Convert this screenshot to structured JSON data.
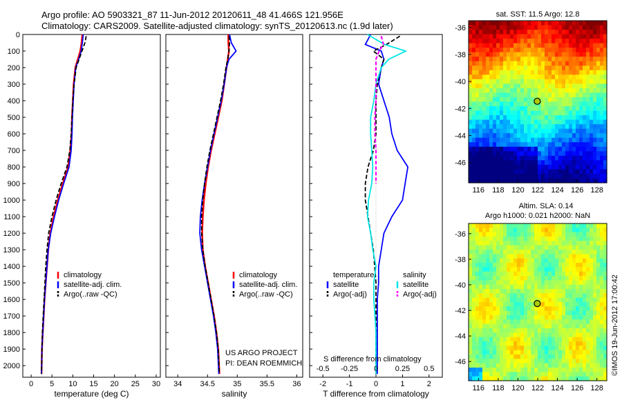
{
  "title": {
    "line1": "Argo profile: AO 5903321_87 11-Jun-2012 20120611_48 41.466S 121.956E",
    "line2": "Climatology: CARS2009. Satellite-adjusted climatology: synTS_20120613.nc (1.9d later)"
  },
  "colors": {
    "climatology": "#ff0000",
    "satellite": "#0000ff",
    "argo": "#000000",
    "s_satellite": "#00e5e5",
    "s_argo": "#ff00ff"
  },
  "chart_data": [
    {
      "type": "line",
      "panel": "temperature",
      "xlabel": "temperature (deg C)",
      "ylabel": "",
      "xlim": [
        -2,
        31
      ],
      "ylim": [
        2070,
        0
      ],
      "y_reversed": true,
      "xticks": [
        "0",
        "5",
        "10",
        "15",
        "20",
        "25",
        "30"
      ],
      "yticks": [
        "0",
        "100",
        "200",
        "300",
        "400",
        "500",
        "600",
        "700",
        "800",
        "900",
        "1000",
        "1100",
        "1200",
        "1300",
        "1400",
        "1500",
        "1600",
        "1700",
        "1800",
        "1900",
        "2000"
      ],
      "legend": [
        "climatology",
        "satellite-adj. clim.",
        "Argo(..raw -QC)"
      ],
      "series": [
        {
          "name": "climatology",
          "x": [
            12.3,
            12.1,
            11.8,
            11.2,
            10.6,
            10.2,
            10.0,
            9.8,
            9.7,
            9.4,
            8.9,
            7.6,
            6.4,
            5.4,
            4.6,
            4.1,
            3.8,
            3.5,
            3.2,
            3.0,
            2.8,
            2.6,
            2.5
          ],
          "y": [
            0,
            50,
            100,
            150,
            200,
            300,
            400,
            500,
            600,
            700,
            800,
            900,
            1000,
            1100,
            1200,
            1300,
            1400,
            1500,
            1600,
            1700,
            1800,
            1900,
            2050
          ]
        },
        {
          "name": "satellite-adj. clim.",
          "x": [
            12.5,
            12.3,
            12.0,
            11.4,
            10.7,
            10.3,
            10.1,
            9.9,
            9.8,
            9.6,
            9.1,
            7.8,
            6.6,
            5.6,
            4.7,
            4.1,
            3.8,
            3.5,
            3.2,
            3.0,
            2.8,
            2.6,
            2.5
          ],
          "y": [
            0,
            50,
            100,
            150,
            200,
            300,
            400,
            500,
            600,
            700,
            800,
            900,
            1000,
            1100,
            1200,
            1300,
            1400,
            1500,
            1600,
            1700,
            1800,
            1900,
            2050
          ]
        },
        {
          "name": "Argo(..raw -QC)",
          "x": [
            13.2,
            12.9,
            12.2,
            11.5,
            10.8,
            10.3,
            10.0,
            9.8,
            9.6,
            9.3,
            8.6,
            7.2,
            6.0,
            5.0,
            4.2,
            3.8,
            3.5,
            3.3,
            3.1,
            2.9,
            2.7,
            2.6,
            2.5
          ],
          "y": [
            10,
            50,
            100,
            150,
            200,
            300,
            400,
            500,
            600,
            700,
            800,
            900,
            1000,
            1100,
            1200,
            1300,
            1400,
            1500,
            1600,
            1700,
            1800,
            1900,
            2050
          ]
        }
      ]
    },
    {
      "type": "line",
      "panel": "salinity",
      "xlabel": "salinity",
      "xlim": [
        33.8,
        36.1
      ],
      "ylim": [
        2070,
        0
      ],
      "y_reversed": true,
      "xticks": [
        "34",
        "34.5",
        "35",
        "35.5",
        "36"
      ],
      "legend": [
        "climatology",
        "satellite-adj. clim.",
        "Argo(..raw -QC)"
      ],
      "annotation": [
        "US ARGO PROJECT",
        "PI: DEAN ROEMMICH"
      ],
      "series": [
        {
          "name": "climatology",
          "x": [
            34.85,
            34.85,
            34.86,
            34.84,
            34.82,
            34.78,
            34.74,
            34.68,
            34.62,
            34.56,
            34.51,
            34.47,
            34.44,
            34.42,
            34.41,
            34.42,
            34.46,
            34.51,
            34.56,
            34.61,
            34.65,
            34.68,
            34.7
          ],
          "y": [
            0,
            50,
            100,
            150,
            200,
            300,
            400,
            500,
            600,
            700,
            800,
            900,
            1000,
            1100,
            1200,
            1300,
            1400,
            1500,
            1600,
            1700,
            1800,
            1900,
            2050
          ]
        },
        {
          "name": "satellite-adj. clim.",
          "x": [
            34.87,
            34.9,
            34.98,
            34.86,
            34.82,
            34.78,
            34.73,
            34.67,
            34.61,
            34.55,
            34.5,
            34.45,
            34.41,
            34.38,
            34.37,
            34.4,
            34.45,
            34.5,
            34.55,
            34.6,
            34.64,
            34.67,
            34.69
          ],
          "y": [
            0,
            50,
            100,
            150,
            200,
            300,
            400,
            500,
            600,
            700,
            800,
            900,
            1000,
            1100,
            1200,
            1300,
            1400,
            1500,
            1600,
            1700,
            1800,
            1900,
            2050
          ]
        },
        {
          "name": "Argo(..raw -QC)",
          "x": [
            34.86,
            34.87,
            34.86,
            34.84,
            34.81,
            34.77,
            34.72,
            34.66,
            34.6,
            34.54,
            34.49,
            34.45,
            34.42,
            34.4,
            34.4,
            34.42,
            34.46,
            34.51,
            34.56,
            34.61,
            34.65,
            34.68,
            34.7
          ],
          "y": [
            10,
            50,
            100,
            150,
            200,
            300,
            400,
            500,
            600,
            700,
            800,
            900,
            1000,
            1100,
            1200,
            1300,
            1400,
            1500,
            1600,
            1700,
            1800,
            1900,
            2050
          ]
        }
      ]
    },
    {
      "type": "line",
      "panel": "difference",
      "xlabel": "T difference from climatology",
      "xlabel_top": "S difference from climatology",
      "xlim": [
        -2.5,
        2.5
      ],
      "ylim": [
        2070,
        0
      ],
      "y_reversed": true,
      "xticks": [
        "-2",
        "-1",
        "0",
        "1",
        "2"
      ],
      "xticks_top": [
        "-0.5",
        "-0.25",
        "0",
        "0.25",
        "0.5"
      ],
      "legend": {
        "temperature_header": "temperature",
        "salinity_header": "salinity",
        "t_satellite": "satellite",
        "t_argo": "Argo(-adj)",
        "s_satellite": "satellite",
        "s_argo": "Argo(-adj)"
      },
      "series": [
        {
          "name": "T satellite",
          "x": [
            -0.2,
            -0.4,
            0.2,
            0.3,
            0.2,
            0.1,
            0.3,
            0.5,
            0.6,
            0.8,
            1.2,
            1.1,
            1.0,
            0.6,
            0.3,
            0.2,
            0.1,
            0.1,
            0.05,
            0.05,
            0.05,
            0.05,
            0.05
          ],
          "y": [
            0,
            60,
            100,
            150,
            200,
            300,
            400,
            500,
            600,
            700,
            800,
            900,
            1000,
            1100,
            1200,
            1300,
            1400,
            1500,
            1600,
            1700,
            1800,
            1900,
            2050
          ]
        },
        {
          "name": "T Argo(-adj)",
          "x": [
            0.9,
            0.4,
            -0.1,
            0.3,
            0.2,
            0.05,
            0.0,
            0.0,
            0.0,
            -0.1,
            -0.3,
            -0.4,
            -0.4,
            -0.3,
            -0.2,
            -0.1,
            -0.05,
            0.0,
            0.0,
            0.0,
            0.0,
            0.0,
            0.0
          ],
          "y": [
            10,
            60,
            100,
            150,
            200,
            300,
            400,
            500,
            600,
            700,
            800,
            900,
            1000,
            1100,
            1200,
            1300,
            1400,
            1500,
            1600,
            1700,
            1800,
            1900,
            2050
          ]
        },
        {
          "name": "S satellite",
          "x": [
            -0.08,
            0.08,
            0.28,
            0.12,
            0.05,
            0.0,
            -0.02,
            -0.05,
            -0.05,
            -0.04,
            -0.03,
            -0.04,
            -0.07,
            -0.08,
            -0.05,
            -0.03,
            0.0,
            -0.02,
            -0.02,
            -0.01,
            0.0,
            0.0,
            0.0
          ],
          "y": [
            0,
            60,
            100,
            150,
            200,
            300,
            400,
            500,
            600,
            700,
            800,
            900,
            1000,
            1100,
            1200,
            1300,
            1400,
            1500,
            1600,
            1700,
            1800,
            1900,
            2050
          ]
        },
        {
          "name": "S Argo(-adj)",
          "x": [
            0.05,
            0.07,
            0.03,
            0.0,
            0.0,
            0.0,
            0.0,
            -0.01,
            -0.01,
            0.0,
            0.0,
            0.0
          ],
          "y": [
            10,
            60,
            100,
            150,
            200,
            300,
            400,
            500,
            600,
            700,
            800,
            900
          ]
        }
      ]
    },
    {
      "type": "heatmap",
      "panel": "sst_map",
      "title": "sat. SST: 11.5 Argo: 12.8",
      "xlim": [
        115,
        129
      ],
      "ylim": [
        -47.5,
        -35.5
      ],
      "xticks": [
        "116",
        "118",
        "120",
        "122",
        "124",
        "126",
        "128"
      ],
      "yticks": [
        "-36",
        "-38",
        "-40",
        "-42",
        "-44",
        "-46"
      ],
      "marker": {
        "lon": 121.956,
        "lat": -41.466
      }
    },
    {
      "type": "heatmap",
      "panel": "sla_map",
      "title_line1": "Altim. SLA: 0.14",
      "title_line2": "Argo h1000: 0.021 h2000: NaN",
      "xlim": [
        115,
        129
      ],
      "ylim": [
        -47.5,
        -35.2
      ],
      "xticks": [
        "116",
        "118",
        "120",
        "122",
        "124",
        "126",
        "128"
      ],
      "yticks": [
        "-36",
        "-38",
        "-40",
        "-42",
        "-44",
        "-46"
      ],
      "marker": {
        "lon": 121.956,
        "lat": -41.466
      },
      "side_text": "©IMOS 19-Jun-2012 17:00:42"
    }
  ]
}
